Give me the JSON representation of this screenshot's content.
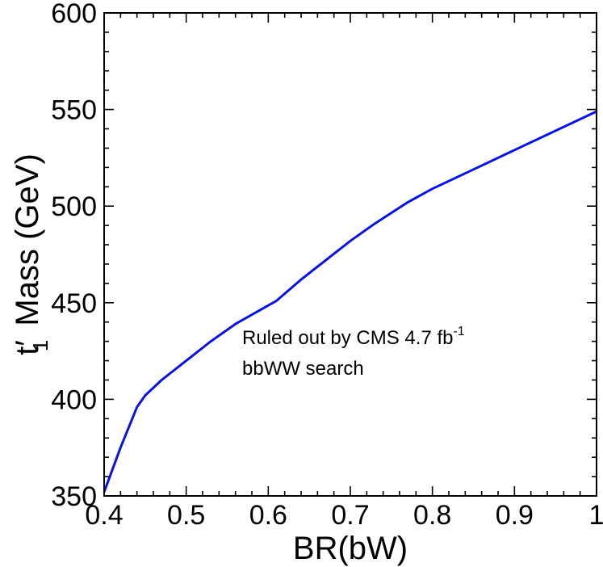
{
  "chart_data": {
    "type": "line",
    "title": "",
    "xlabel": "BR(bW)",
    "ylabel": {
      "main": "t",
      "prime": "′",
      "sub": "1",
      "rest": " Mass  (GeV)"
    },
    "xlim": [
      0.4,
      1.0
    ],
    "ylim": [
      350,
      600
    ],
    "x_ticks": [
      0.4,
      0.5,
      0.6,
      0.7,
      0.8,
      0.9,
      1.0
    ],
    "x_tick_labels": [
      "0.4",
      "0.5",
      "0.6",
      "0.7",
      "0.8",
      "0.9",
      "1"
    ],
    "y_ticks": [
      350,
      400,
      450,
      500,
      550,
      600
    ],
    "y_tick_labels": [
      "350",
      "400",
      "450",
      "500",
      "550",
      "600"
    ],
    "x_minor_step": 0.02,
    "y_minor_step": 10,
    "grid": false,
    "series": [
      {
        "color": "#0a14d8",
        "x": [
          0.4,
          0.42,
          0.44,
          0.45,
          0.47,
          0.5,
          0.53,
          0.56,
          0.61,
          0.64,
          0.67,
          0.7,
          0.73,
          0.77,
          0.8,
          0.85,
          0.9,
          0.95,
          1.0
        ],
        "y": [
          352,
          375,
          396,
          402,
          410,
          420,
          430,
          439,
          451,
          462,
          472,
          482,
          491,
          502,
          509,
          519,
          529,
          539,
          549
        ]
      }
    ],
    "annotation": {
      "line1": "Ruled out by CMS 4.7 fb",
      "line1_sup": "-1",
      "line2": "bbWW search"
    }
  }
}
